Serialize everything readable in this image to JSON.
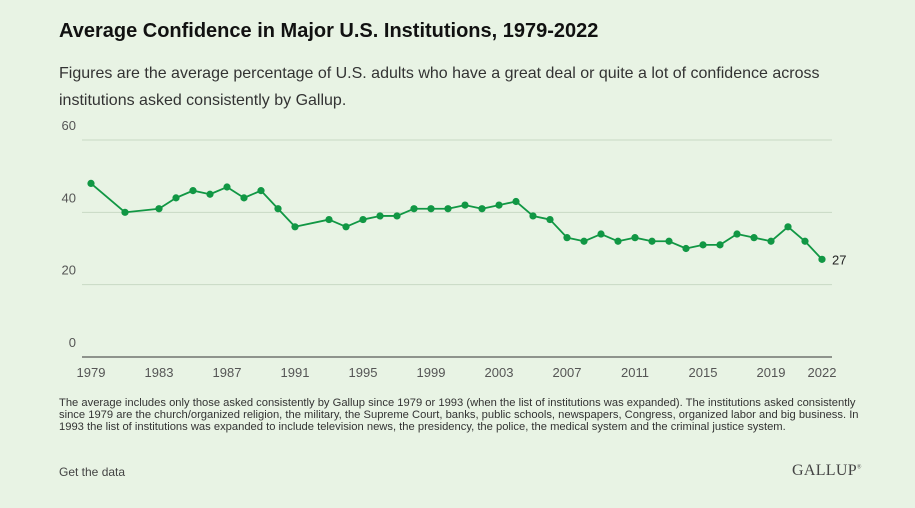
{
  "header": {
    "title": "Average Confidence in Major U.S. Institutions, 1979-2022",
    "subtitle": "Figures are the average percentage of U.S. adults who have a great deal or quite a lot of confidence across institutions asked consistently by Gallup."
  },
  "chart_data": {
    "type": "line",
    "x": [
      1979,
      1981,
      1983,
      1984,
      1985,
      1986,
      1987,
      1988,
      1989,
      1990,
      1991,
      1993,
      1994,
      1995,
      1996,
      1997,
      1998,
      1999,
      2000,
      2001,
      2002,
      2003,
      2004,
      2005,
      2006,
      2007,
      2008,
      2009,
      2010,
      2011,
      2012,
      2013,
      2014,
      2015,
      2016,
      2017,
      2018,
      2019,
      2020,
      2021,
      2022
    ],
    "series": [
      {
        "values": [
          48,
          40,
          41,
          44,
          46,
          45,
          47,
          44,
          46,
          41,
          36,
          38,
          36,
          38,
          39,
          39,
          41,
          41,
          41,
          42,
          41,
          42,
          43,
          39,
          38,
          33,
          32,
          34,
          32,
          33,
          32,
          32,
          30,
          31,
          31,
          34,
          33,
          32,
          36,
          32,
          27
        ],
        "color": "#119744"
      }
    ],
    "x_ticks": [
      "1979",
      "1983",
      "1987",
      "1991",
      "1995",
      "1999",
      "2003",
      "2007",
      "2011",
      "2015",
      "2019",
      "2022"
    ],
    "y_ticks": [
      "0",
      "20",
      "40",
      "60"
    ],
    "ylim": [
      0,
      60
    ],
    "xlim": [
      1979,
      2022
    ],
    "end_label": "27",
    "grid": true,
    "legend": "none"
  },
  "footer": {
    "note": "The average includes only those asked consistently by Gallup since 1979 or 1993 (when the list of institutions was expanded). The institutions asked consistently since 1979 are the church/organized religion, the military, the Supreme Court, banks, public schools, newspapers, Congress, organized labor and big business. In 1993 the list of institutions was expanded to include television news, the presidency, the police, the medical system and the criminal justice system.",
    "data_link": "Get the data",
    "logo": "GALLUP"
  }
}
